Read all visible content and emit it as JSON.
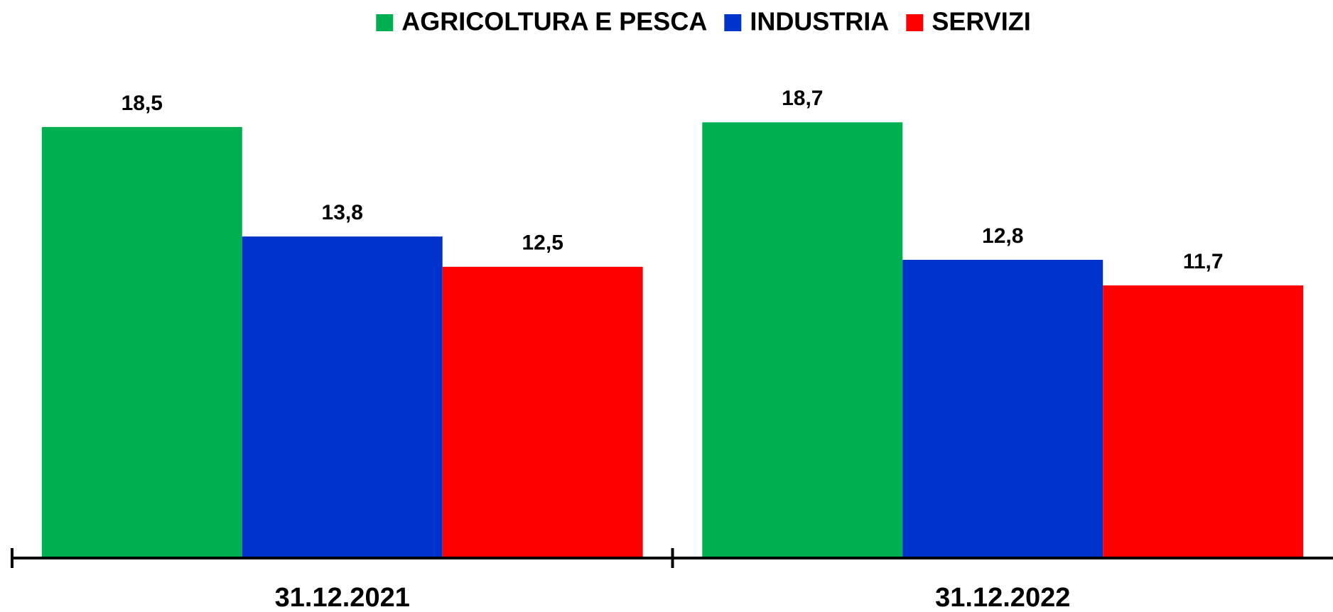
{
  "chart_data": {
    "type": "bar",
    "categories": [
      "31.12.2021",
      "31.12.2022"
    ],
    "series": [
      {
        "name": "AGRICOLTURA E PESCA",
        "color": "#00b050",
        "values": [
          18.5,
          18.7
        ],
        "value_labels": [
          "18,5",
          "18,7"
        ]
      },
      {
        "name": "INDUSTRIA",
        "color": "#0033cc",
        "values": [
          13.8,
          12.8
        ],
        "value_labels": [
          "13,8",
          "12,8"
        ]
      },
      {
        "name": "SERVIZI",
        "color": "#ff0000",
        "values": [
          12.5,
          11.7
        ],
        "value_labels": [
          "12,5",
          "11,7"
        ]
      }
    ],
    "ylim": [
      0,
      22
    ],
    "legend": "top"
  }
}
